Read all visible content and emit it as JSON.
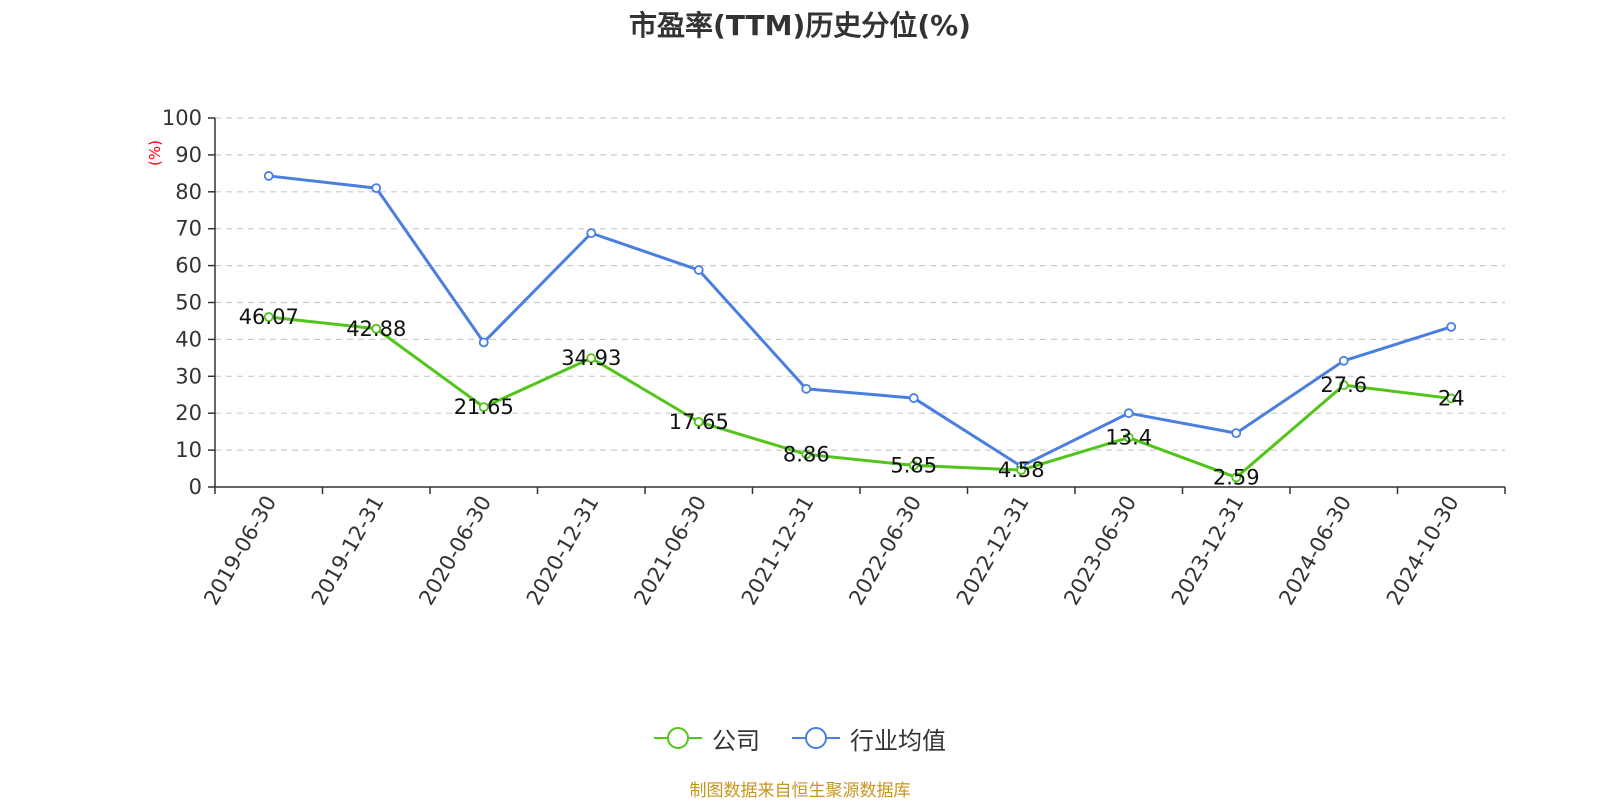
{
  "chart_data": {
    "type": "line",
    "title": "市盈率(TTM)历史分位(%)",
    "ylabel": "(%)",
    "xlabel": "",
    "ylim": [
      0,
      100
    ],
    "yticks": [
      0,
      10,
      20,
      30,
      40,
      50,
      60,
      70,
      80,
      90,
      100
    ],
    "grid": true,
    "legend_position": "bottom",
    "categories": [
      "2019-06-30",
      "2019-12-31",
      "2020-06-30",
      "2020-12-31",
      "2021-06-30",
      "2021-12-31",
      "2022-06-30",
      "2022-12-31",
      "2023-06-30",
      "2023-12-31",
      "2024-06-30",
      "2024-10-30"
    ],
    "series": [
      {
        "name": "公司",
        "color": "#52c41a",
        "show_labels": true,
        "values": [
          46.07,
          42.88,
          21.65,
          34.93,
          17.65,
          8.86,
          5.85,
          4.58,
          13.4,
          2.59,
          27.6,
          24
        ]
      },
      {
        "name": "行业均值",
        "color": "#4a7fe0",
        "show_labels": false,
        "values": [
          84.3,
          81.0,
          39.2,
          68.8,
          58.8,
          26.6,
          24.1,
          5.6,
          20.0,
          14.6,
          34.2,
          43.4
        ]
      }
    ]
  },
  "ylabel_color": "#ff0000",
  "footer": {
    "source": "制图数据来自恒生聚源数据库",
    "source_color": "#c9951c"
  }
}
